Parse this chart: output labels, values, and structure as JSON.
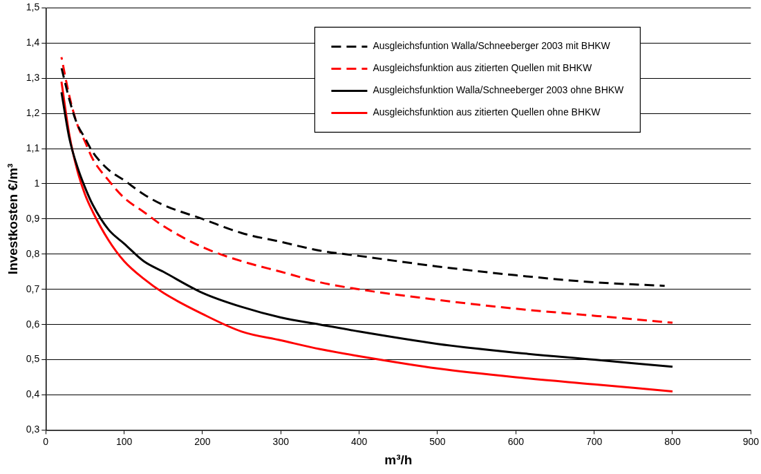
{
  "chart_data": {
    "type": "line",
    "xlabel": "m³/h",
    "ylabel": "Investkosten €/m³",
    "x": [
      20,
      30,
      40,
      50,
      60,
      80,
      100,
      125,
      150,
      200,
      250,
      300,
      350,
      400,
      500,
      600,
      700,
      800
    ],
    "series": [
      {
        "name": "Ausgleichsfuntion Walla/Schneeberger 2003 mit BHKW",
        "color": "#000000",
        "line_style": "dashed",
        "x": [
          20,
          30,
          40,
          50,
          60,
          80,
          100,
          125,
          150,
          200,
          250,
          300,
          350,
          400,
          500,
          600,
          700,
          790
        ],
        "values": [
          1.33,
          1.24,
          1.17,
          1.13,
          1.09,
          1.04,
          1.01,
          0.97,
          0.94,
          0.9,
          0.86,
          0.835,
          0.81,
          0.795,
          0.765,
          0.74,
          0.72,
          0.71
        ]
      },
      {
        "name": "Ausgleichsfunktion aus zitierten Quellen mit BHKW",
        "color": "#ff0000",
        "line_style": "dashed",
        "values": [
          1.36,
          1.25,
          1.17,
          1.12,
          1.07,
          1.01,
          0.96,
          0.92,
          0.88,
          0.82,
          0.78,
          0.75,
          0.72,
          0.7,
          0.67,
          0.645,
          0.625,
          0.605
        ]
      },
      {
        "name": "Ausgleichsfunktion Walla/Schneeberger 2003 ohne BHKW",
        "color": "#000000",
        "line_style": "solid",
        "values": [
          1.26,
          1.13,
          1.05,
          0.99,
          0.94,
          0.87,
          0.83,
          0.78,
          0.75,
          0.69,
          0.65,
          0.62,
          0.6,
          0.58,
          0.545,
          0.52,
          0.5,
          0.48
        ]
      },
      {
        "name": "Ausgleichsfunktion aus zitierten Quellen ohne BHKW",
        "color": "#ff0000",
        "line_style": "solid",
        "values": [
          1.29,
          1.14,
          1.04,
          0.97,
          0.92,
          0.84,
          0.78,
          0.73,
          0.69,
          0.63,
          0.58,
          0.555,
          0.53,
          0.51,
          0.475,
          0.45,
          0.43,
          0.41
        ]
      }
    ],
    "xlim": [
      0,
      900
    ],
    "xticks": [
      0,
      100,
      200,
      300,
      400,
      500,
      600,
      700,
      800,
      900
    ],
    "ylim": [
      0.3,
      1.5
    ],
    "yticks": [
      {
        "value": 0.3,
        "label": "0,3"
      },
      {
        "value": 0.4,
        "label": "0,4"
      },
      {
        "value": 0.5,
        "label": "0,5"
      },
      {
        "value": 0.6,
        "label": "0,6"
      },
      {
        "value": 0.7,
        "label": "0,7"
      },
      {
        "value": 0.8,
        "label": "0,8"
      },
      {
        "value": 0.9,
        "label": "0,9"
      },
      {
        "value": 1,
        "label": "1"
      },
      {
        "value": 1.1,
        "label": "1,1"
      },
      {
        "value": 1.2,
        "label": "1,2"
      },
      {
        "value": 1.3,
        "label": "1,3"
      },
      {
        "value": 1.4,
        "label": "1,4"
      },
      {
        "value": 1.5,
        "label": "1,5"
      }
    ],
    "grid": "y",
    "legend": "top right",
    "marker": "none"
  }
}
